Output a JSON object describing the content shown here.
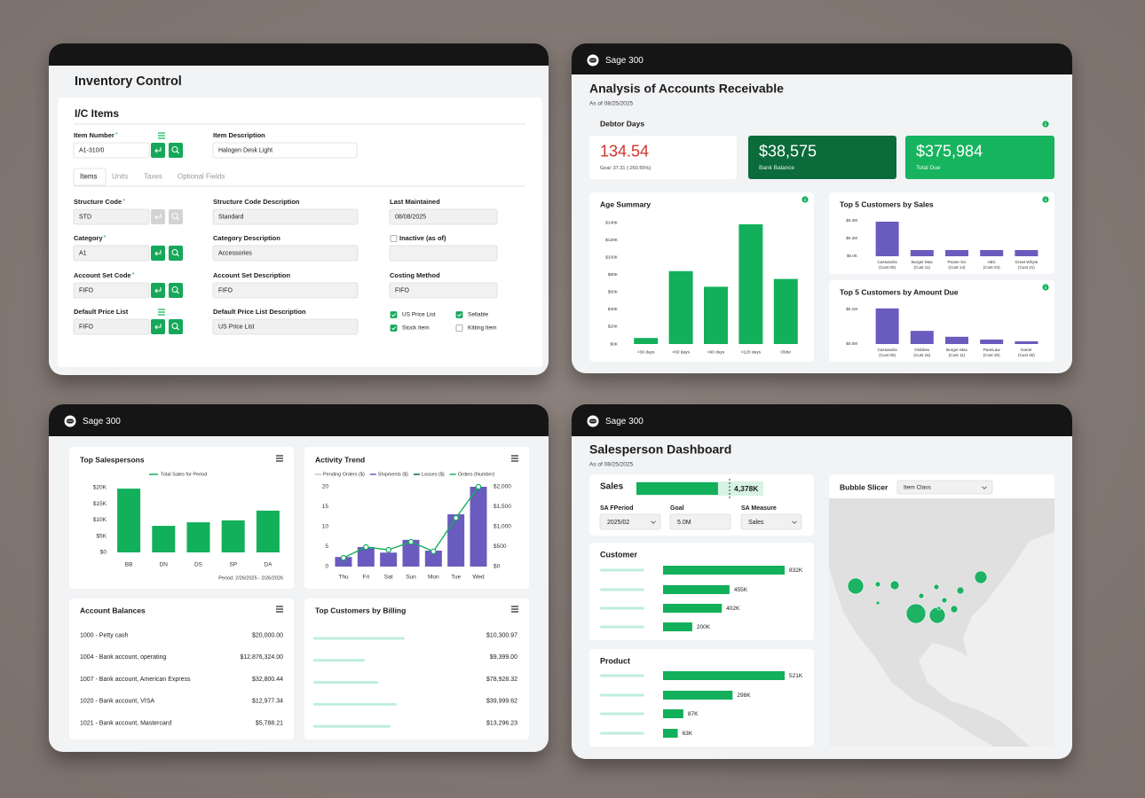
{
  "inventory": {
    "title": "Inventory Control",
    "card_title": "I/C Items",
    "header_fields": [
      {
        "label": "Item Number",
        "required_mark": "*",
        "menu_icon": true,
        "value": "A1-310/0",
        "lookup": true
      },
      {
        "label": "Item Description",
        "value": "Halogen Desk Light"
      }
    ],
    "tabs": [
      "Items",
      "Units",
      "Taxes",
      "Optional Fields"
    ],
    "rows": [
      [
        {
          "label": "Structure Code",
          "required_mark": "*",
          "value": "STD",
          "lookup": false
        },
        {
          "label": "Structure Code Description",
          "value": "Standard"
        },
        {
          "label": "Last Maintained",
          "value": "08/08/2025"
        }
      ],
      [
        {
          "label": "Category",
          "required_mark": "*",
          "value": "A1",
          "lookup": true
        },
        {
          "label": "Category Description",
          "value": "Accessories"
        },
        {
          "label": "Inactive (as of)",
          "checkbox": false
        }
      ],
      [
        {
          "label": "Account Set Code",
          "required_mark": "*",
          "value": "FIFO",
          "lookup": true
        },
        {
          "label": "Account Set Description",
          "value": "FIFO"
        },
        {
          "label": "Costing Method",
          "value": "FIFO"
        }
      ],
      [
        {
          "label": "Default Price List",
          "menu_icon": true,
          "value": "FIFO",
          "lookup": true
        },
        {
          "label": "Default Price List Description",
          "value": "US Price List"
        }
      ]
    ],
    "options": [
      {
        "label": "US Price List",
        "checked": true
      },
      {
        "label": "Sellable",
        "checked": true
      },
      {
        "label": "Stock Item",
        "checked": true
      },
      {
        "label": "Kitting Item",
        "checked": false
      }
    ]
  },
  "receivables": {
    "app": "Sage 300",
    "title": "Analysis of Accounts Receivable",
    "as_of": "As of 08/25/2025",
    "section": "Debtor Days",
    "kpis": [
      {
        "value": "134.54",
        "note": "Goal: 37.31 (-260.55%)"
      },
      {
        "value": "$38,575",
        "label": "Bank Balance"
      },
      {
        "value": "$375,984",
        "label": "Total Due"
      }
    ]
  },
  "overview": {
    "app": "Sage 300",
    "account_balances": {
      "title": "Account Balances",
      "rows": [
        [
          "1000 - Petty cash",
          "$20,000.00"
        ],
        [
          "1004 - Bank account, operating",
          "$12,876,324.00"
        ],
        [
          "1007 - Bank account, American Express",
          "$32,800.44"
        ],
        [
          "1020 - Bank account, VISA",
          "$12,977.34"
        ],
        [
          "1021 - Bank account, Mastercard",
          "$5,788.21"
        ]
      ]
    },
    "billing": {
      "title": "Top Customers by Billing",
      "amounts": [
        "$10,300.97",
        "$9,399.00",
        "$78,928.32",
        "$39,999.62",
        "$13,296.23"
      ]
    }
  },
  "salesperson": {
    "app": "Sage 300",
    "title": "Salesperson Dashboard",
    "as_of": "As of 08/25/2025",
    "sales": {
      "label": "Sales",
      "value": 4378,
      "value_label": "4,378K",
      "goal": 5000
    },
    "filters": [
      {
        "label": "SA FPeriod",
        "value": "2025/02",
        "dropdown": true
      },
      {
        "label": "Goal",
        "value": "5.0M"
      },
      {
        "label": "SA Measure",
        "value": "Sales",
        "dropdown": true
      }
    ],
    "bubble_slicer": {
      "title": "Bubble Slicer",
      "filter": "Item Class"
    }
  },
  "chart_data": [
    {
      "type": "bar",
      "title": "Age Summary",
      "categories": [
        "<30 days",
        "<60 days",
        "<90 days",
        "<120 days",
        "Older"
      ],
      "values": [
        7,
        84,
        66,
        138,
        75
      ],
      "color": "#12b05a",
      "ylim": [
        0,
        140
      ],
      "yticks": [
        {
          "value": 0,
          "label": "$0K"
        },
        {
          "value": 20,
          "label": "$20K"
        },
        {
          "value": 40,
          "label": "$40K"
        },
        {
          "value": 60,
          "label": "$60K"
        },
        {
          "value": 80,
          "label": "$80K"
        },
        {
          "value": 100,
          "label": "$100K"
        },
        {
          "value": 120,
          "label": "$120K"
        },
        {
          "value": 140,
          "label": "$140K"
        }
      ]
    },
    {
      "type": "bar",
      "title": "Top 5 Customers by Sales",
      "categories": [
        [
          "Cassandra",
          "(Cust 05)"
        ],
        [
          "Burger Max",
          "(Cust 11)"
        ],
        [
          "Peane Sci",
          "(Cust 14)"
        ],
        [
          "ABC",
          "(Cust 04)"
        ],
        [
          "Great Whyte",
          "(Cust 21)"
        ]
      ],
      "values": [
        0.39,
        0.07,
        0.07,
        0.07,
        0.07
      ],
      "color": "#6a5bbf",
      "ylim": [
        0,
        0.4
      ],
      "yticks": [
        {
          "value": 0,
          "label": "$0.0K"
        },
        {
          "value": 0.2,
          "label": "$0.2M"
        },
        {
          "value": 0.4,
          "label": "$0.4M"
        }
      ]
    },
    {
      "type": "bar",
      "title": "Top 5 Customers by Amount Due",
      "categories": [
        [
          "Cassandra",
          "(Cust 05)"
        ],
        [
          "Globbex",
          "(Cust 15)"
        ],
        [
          "Burger Max",
          "(Cust 11)"
        ],
        [
          "PaseLaw",
          "(Cust 20)"
        ],
        [
          "Darier",
          "(Cust 30)"
        ]
      ],
      "values": [
        0.103,
        0.038,
        0.021,
        0.013,
        0.008
      ],
      "color": "#6a5bbf",
      "ylim": [
        0,
        0.12
      ],
      "yticks": [
        {
          "value": 0,
          "label": "$0.0M"
        },
        {
          "value": 0.1,
          "label": "$0.1M"
        }
      ]
    },
    {
      "type": "bar",
      "title": "Top Salespersons",
      "categories": [
        "BB",
        "DN",
        "DS",
        "SP",
        "DA"
      ],
      "series": [
        {
          "name": "Total Sales for Period",
          "color": "#12b05a",
          "values": [
            19.7,
            8.2,
            9.3,
            9.9,
            12.9
          ]
        }
      ],
      "ylim": [
        0,
        20
      ],
      "yticks": [
        {
          "value": 0,
          "label": "$0"
        },
        {
          "value": 5,
          "label": "$5K"
        },
        {
          "value": 10,
          "label": "$10K"
        },
        {
          "value": 15,
          "label": "$15K"
        },
        {
          "value": 20,
          "label": "$20K"
        }
      ],
      "note": "Period: 2/26/2025 - 2/26/2026"
    },
    {
      "type": "bar",
      "title": "Activity Trend",
      "categories": [
        "Thu",
        "Fri",
        "Sat",
        "Sun",
        "Mon",
        "Tue",
        "Wed"
      ],
      "series": [
        {
          "name": "Pending Orders ($)",
          "color": "#c4c4c4"
        },
        {
          "name": "Shipments ($)",
          "color": "#6a5bbf",
          "axis": "y2",
          "values": [
            240,
            490,
            350,
            670,
            400,
            1310,
            2000
          ]
        },
        {
          "name": "Losses ($)",
          "color": "#0b6b3a"
        },
        {
          "name": "Orders (Number)",
          "color": "#12b05a",
          "type": "line",
          "values": [
            2.2,
            4.9,
            4.2,
            6.2,
            3.8,
            12.2,
            20
          ]
        }
      ],
      "ylim": [
        0,
        20
      ],
      "yticks": [
        0,
        5,
        10,
        15,
        20
      ],
      "y2lim": [
        0,
        2000
      ],
      "y2ticks": [
        {
          "value": 0,
          "label": "$0"
        },
        {
          "value": 500,
          "label": "$500"
        },
        {
          "value": 1000,
          "label": "$1,000"
        },
        {
          "value": 1500,
          "label": "$1,500"
        },
        {
          "value": 2000,
          "label": "$2,000"
        }
      ]
    },
    {
      "type": "bar",
      "orientation": "horizontal",
      "title": "Customer",
      "values": [
        832,
        455,
        402,
        200
      ],
      "value_labels": [
        "832K",
        "455K",
        "402K",
        "200K"
      ],
      "color": "#12b05a"
    },
    {
      "type": "bar",
      "orientation": "horizontal",
      "title": "Product",
      "values": [
        521,
        298,
        87,
        63
      ],
      "value_labels": [
        "521K",
        "298K",
        "87K",
        "63K"
      ],
      "color": "#12b05a"
    }
  ]
}
